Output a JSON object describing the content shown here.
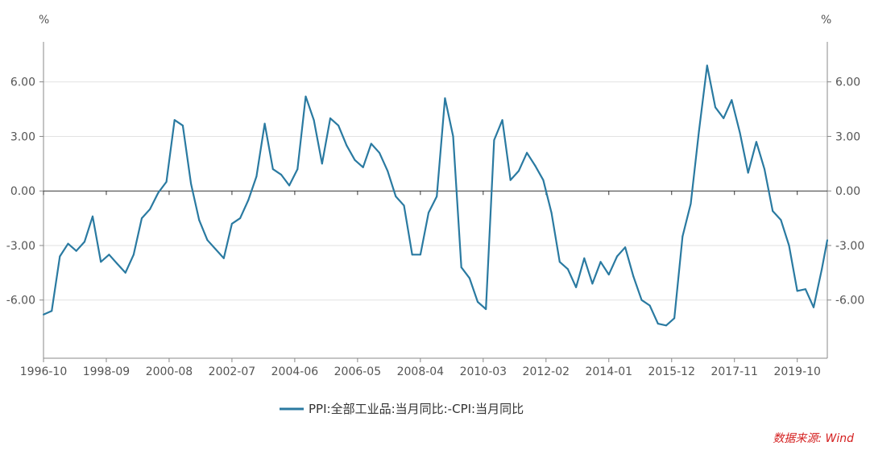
{
  "chart_data": {
    "type": "line",
    "y_unit_left": "%",
    "y_unit_right": "%",
    "ylim": [
      -9.2,
      8.2
    ],
    "y_ticks": [
      6,
      3,
      0,
      -3,
      -6
    ],
    "y_tick_labels": [
      "6.00",
      "3.00",
      "0.00",
      "-3.00",
      "-6.00"
    ],
    "x_range_months": [
      "1996-10",
      "2020-09"
    ],
    "x_tick_labels": [
      "1996-10",
      "1998-09",
      "2000-08",
      "2002-07",
      "2004-06",
      "2006-05",
      "2008-04",
      "2010-03",
      "2012-02",
      "2014-01",
      "2015-12",
      "2017-11",
      "2019-10"
    ],
    "grid": "horizontal",
    "legend_position": "bottom",
    "color": "#2a7aa1",
    "series": [
      {
        "name": "PPI:全部工业品:当月同比:-CPI:当月同比",
        "x": [
          "1996-10",
          "1997-01",
          "1997-04",
          "1997-07",
          "1997-10",
          "1998-01",
          "1998-04",
          "1998-07",
          "1998-10",
          "1999-01",
          "1999-04",
          "1999-07",
          "1999-10",
          "2000-01",
          "2000-04",
          "2000-07",
          "2000-10",
          "2001-01",
          "2001-04",
          "2001-07",
          "2001-10",
          "2002-01",
          "2002-04",
          "2002-07",
          "2002-10",
          "2003-01",
          "2003-04",
          "2003-07",
          "2003-10",
          "2004-01",
          "2004-04",
          "2004-07",
          "2004-10",
          "2005-01",
          "2005-04",
          "2005-07",
          "2005-10",
          "2006-01",
          "2006-04",
          "2006-07",
          "2006-10",
          "2007-01",
          "2007-04",
          "2007-07",
          "2007-10",
          "2008-01",
          "2008-04",
          "2008-07",
          "2008-10",
          "2009-01",
          "2009-04",
          "2009-07",
          "2009-10",
          "2010-01",
          "2010-04",
          "2010-07",
          "2010-10",
          "2011-01",
          "2011-04",
          "2011-07",
          "2011-10",
          "2012-01",
          "2012-04",
          "2012-07",
          "2012-10",
          "2013-01",
          "2013-04",
          "2013-07",
          "2013-10",
          "2014-01",
          "2014-04",
          "2014-07",
          "2014-10",
          "2015-01",
          "2015-04",
          "2015-07",
          "2015-10",
          "2016-01",
          "2016-04",
          "2016-07",
          "2016-10",
          "2017-01",
          "2017-04",
          "2017-07",
          "2017-10",
          "2018-01",
          "2018-04",
          "2018-07",
          "2018-10",
          "2019-01",
          "2019-04",
          "2019-07",
          "2019-10",
          "2020-01",
          "2020-04",
          "2020-07",
          "2020-09"
        ],
        "values": [
          -6.8,
          -6.6,
          -3.6,
          -2.9,
          -3.3,
          -2.8,
          -1.4,
          -3.9,
          -3.5,
          -4.0,
          -4.5,
          -3.5,
          -1.5,
          -1.0,
          -0.1,
          0.5,
          3.9,
          3.6,
          0.4,
          -1.6,
          -2.7,
          -3.2,
          -3.7,
          -1.8,
          -1.5,
          -0.5,
          0.8,
          3.7,
          1.2,
          0.9,
          0.3,
          1.2,
          5.2,
          3.9,
          1.5,
          4.0,
          3.6,
          2.5,
          1.7,
          1.3,
          2.6,
          2.1,
          1.1,
          -0.3,
          -0.8,
          -3.5,
          -3.5,
          -1.2,
          -0.3,
          5.1,
          3.0,
          -4.2,
          -4.8,
          -6.1,
          -6.5,
          2.8,
          3.9,
          0.6,
          1.1,
          2.1,
          1.4,
          0.6,
          -1.2,
          -3.9,
          -4.3,
          -5.3,
          -3.7,
          -5.1,
          -3.9,
          -4.6,
          -3.6,
          -3.1,
          -4.7,
          -6.0,
          -6.3,
          -7.3,
          -7.4,
          -7.0,
          -2.5,
          -0.7,
          3.3,
          6.9,
          4.6,
          4.0,
          5.0,
          3.2,
          1.0,
          2.7,
          1.2,
          -1.1,
          -1.6,
          -3.0,
          -5.5,
          -5.4,
          -6.4,
          -4.3,
          -2.7
        ]
      }
    ],
    "legend": [
      "PPI:全部工业品:当月同比:-CPI:当月同比"
    ],
    "source": "数据来源: Wind"
  }
}
